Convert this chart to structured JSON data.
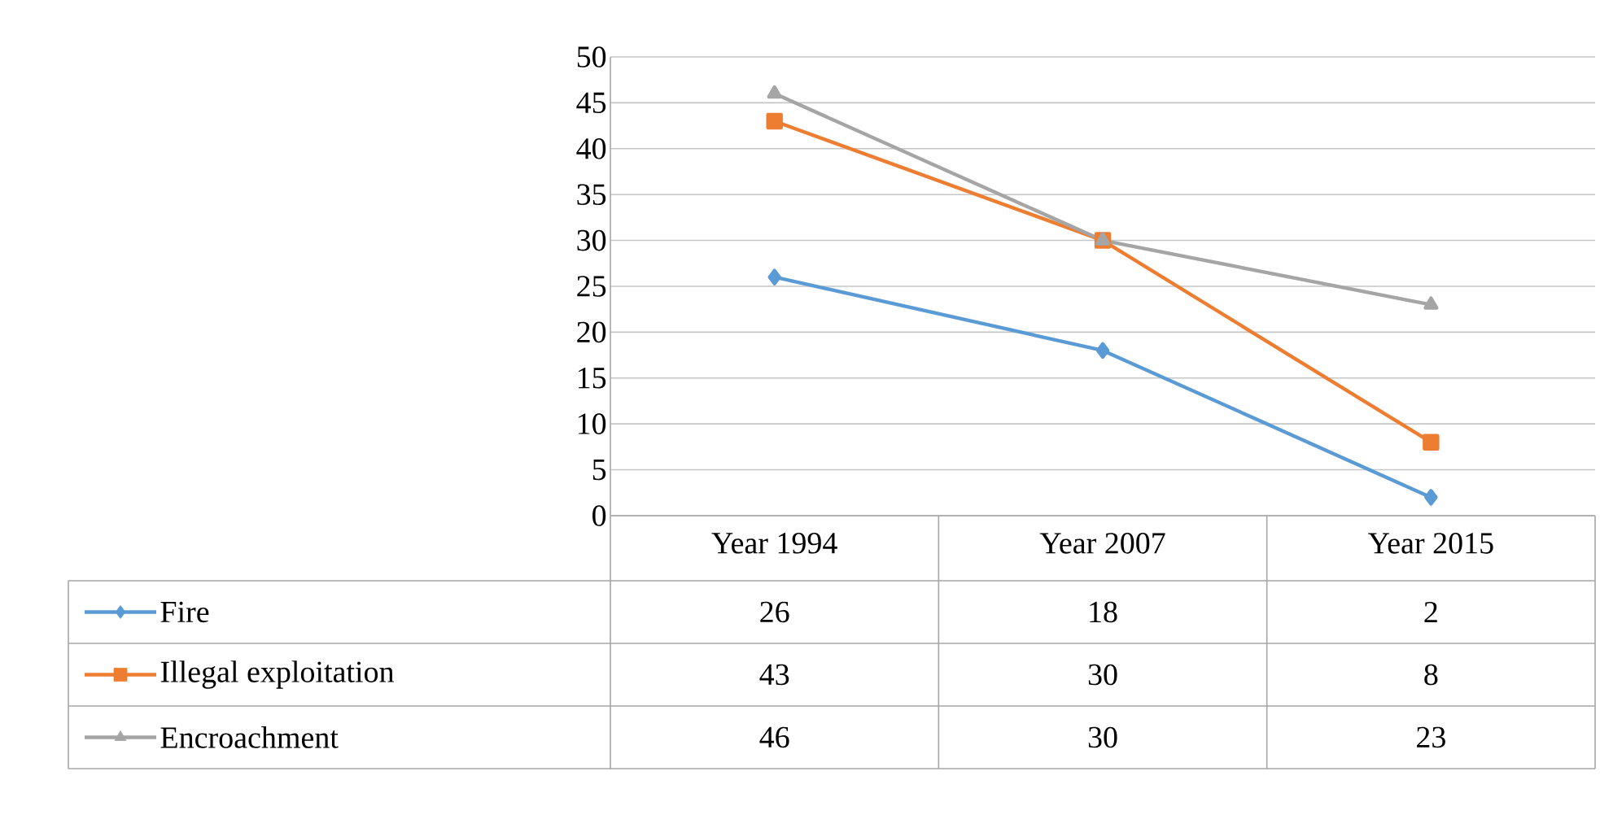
{
  "chart_data": {
    "type": "line",
    "categories": [
      "Year 1994",
      "Year 2007",
      "Year 2015"
    ],
    "series": [
      {
        "name": "Fire",
        "color": "#5b9bd5",
        "marker": "diamond",
        "values": [
          26,
          18,
          2
        ]
      },
      {
        "name": "Illegal exploitation",
        "color": "#ed7d31",
        "marker": "square",
        "values": [
          43,
          30,
          8
        ]
      },
      {
        "name": "Encroachment",
        "color": "#a5a5a5",
        "marker": "triangle",
        "values": [
          46,
          30,
          23
        ]
      }
    ],
    "ylim": [
      0,
      50
    ],
    "yticks": [
      0,
      5,
      10,
      15,
      20,
      25,
      30,
      35,
      40,
      45,
      50
    ],
    "grid": "y",
    "legend": "bottom left",
    "data_labels": true
  }
}
